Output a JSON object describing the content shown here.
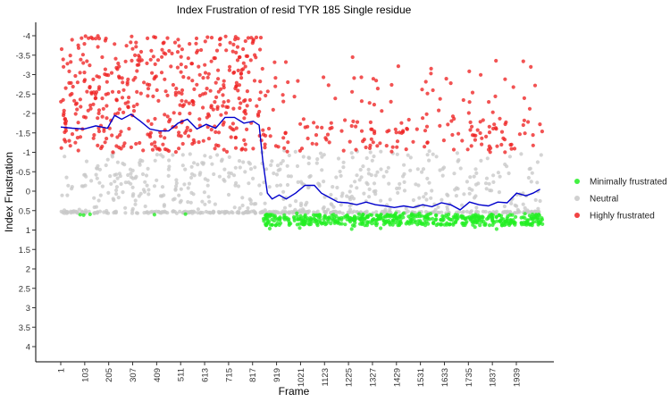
{
  "chart_data": {
    "type": "scatter",
    "title": "Index Frustration of resid TYR 185 Single residue",
    "xlabel": "Frame",
    "ylabel": "Index Frustration",
    "xlim": [
      1,
      2050
    ],
    "ylim": [
      -4.3,
      4.4
    ],
    "y_reversed": true,
    "grid": false,
    "legend_position": "right",
    "x_ticks": [
      1,
      103,
      205,
      307,
      409,
      511,
      613,
      715,
      817,
      919,
      1021,
      1123,
      1225,
      1327,
      1429,
      1531,
      1633,
      1735,
      1837,
      1939
    ],
    "x_tick_labels": [
      "1",
      "103",
      "205",
      "307",
      "409",
      "511",
      "613",
      "715",
      "817",
      "919",
      "1021",
      "1123",
      "1225",
      "1327",
      "1429",
      "1531",
      "1633",
      "1735",
      "1837",
      "1939"
    ],
    "y_ticks": [
      -4,
      -3.5,
      -3,
      -2.5,
      -2,
      -1.5,
      -1,
      -0.5,
      0,
      0.5,
      1,
      1.5,
      2,
      2.5,
      3,
      3.5,
      4
    ],
    "y_tick_labels": [
      "-4",
      "-3.5",
      "-3",
      "-2.5",
      "-2",
      "-1.5",
      "-1",
      "-0.5",
      "0",
      "0.5",
      "1",
      "1.5",
      "2",
      "2.5",
      "3",
      "3.5",
      "4"
    ],
    "series": [
      {
        "name": "Minimally frustrated",
        "color": "#22ee22",
        "phases": [
          {
            "x_range": [
              1,
              860
            ],
            "y_range": [
              0.58,
              0.62
            ],
            "count": 5,
            "sparse": true
          },
          {
            "x_range": [
              860,
              2050
            ],
            "y_range": [
              0.55,
              0.92
            ],
            "count": 520
          }
        ]
      },
      {
        "name": "Neutral",
        "color": "#c8c8c8",
        "phases": [
          {
            "x_range": [
              1,
              860
            ],
            "y_range": [
              -1.0,
              0.56
            ],
            "count": 330
          },
          {
            "x_range": [
              860,
              2050
            ],
            "y_range": [
              -1.05,
              0.56
            ],
            "count": 420
          }
        ]
      },
      {
        "name": "Highly frustrated",
        "color": "#ee2222",
        "phases": [
          {
            "x_range": [
              1,
              860
            ],
            "y_range": [
              -4.0,
              -1.0
            ],
            "count": 470
          },
          {
            "x_range": [
              860,
              2050
            ],
            "y_range": [
              -3.45,
              -1.0
            ],
            "count": 200
          }
        ]
      }
    ],
    "trend_line": {
      "color": "#0000cc",
      "x": [
        1,
        50,
        100,
        150,
        200,
        230,
        260,
        300,
        340,
        380,
        420,
        460,
        500,
        540,
        580,
        620,
        660,
        700,
        740,
        780,
        820,
        845,
        860,
        880,
        900,
        930,
        960,
        1000,
        1040,
        1080,
        1110,
        1140,
        1180,
        1220,
        1260,
        1300,
        1340,
        1380,
        1420,
        1460,
        1500,
        1540,
        1580,
        1620,
        1660,
        1700,
        1740,
        1780,
        1820,
        1860,
        1900,
        1940,
        1980,
        2010,
        2040
      ],
      "y": [
        -1.65,
        -1.62,
        -1.6,
        -1.68,
        -1.62,
        -1.95,
        -1.85,
        -1.98,
        -1.8,
        -1.6,
        -1.55,
        -1.55,
        -1.75,
        -1.85,
        -1.6,
        -1.72,
        -1.62,
        -1.9,
        -1.9,
        -1.75,
        -1.8,
        -1.7,
        -0.8,
        0.05,
        0.2,
        0.1,
        0.2,
        0.05,
        -0.15,
        -0.15,
        0.05,
        0.15,
        0.28,
        0.3,
        0.35,
        0.28,
        0.35,
        0.38,
        0.42,
        0.38,
        0.42,
        0.35,
        0.4,
        0.3,
        0.35,
        0.48,
        0.28,
        0.35,
        0.38,
        0.28,
        0.3,
        0.05,
        0.12,
        0.05,
        -0.05
      ]
    }
  }
}
